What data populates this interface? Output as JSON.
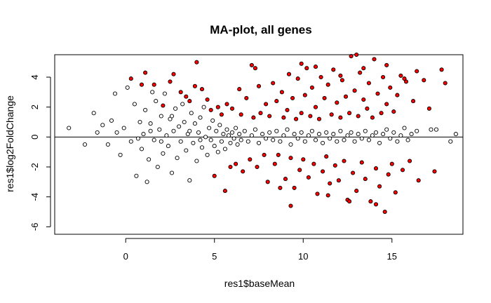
{
  "chart_data": {
    "type": "scatter",
    "title": "MA-plot, all genes",
    "xlabel": "res1$baseMean",
    "ylabel": "res1$log2FoldChange",
    "xlim": [
      -4,
      19
    ],
    "ylim": [
      -6.5,
      5.5
    ],
    "x_ticks": [
      0,
      5,
      10,
      15
    ],
    "y_ticks": [
      -6,
      -4,
      -2,
      0,
      2,
      4
    ],
    "reference_line": {
      "y": 0,
      "color": "#000000"
    },
    "grid": false,
    "legend": "none",
    "point_style": {
      "shape": "open-circle",
      "outline": "#000000"
    },
    "series": [
      {
        "fill": "#ffffff",
        "points": [
          [
            -3.2,
            0.6
          ],
          [
            -2.3,
            -0.5
          ],
          [
            -1.8,
            1.6
          ],
          [
            -1.6,
            0.3
          ],
          [
            -1.3,
            0.8
          ],
          [
            -1.0,
            -0.5
          ],
          [
            -0.8,
            1.1
          ],
          [
            -0.6,
            2.9
          ],
          [
            -0.5,
            0.3
          ],
          [
            -0.3,
            -1.2
          ],
          [
            -0.1,
            0.6
          ],
          [
            0.1,
            3.3
          ],
          [
            0.3,
            -0.3
          ],
          [
            0.5,
            2.2
          ],
          [
            0.6,
            -2.6
          ],
          [
            0.8,
            1.0
          ],
          [
            0.9,
            -0.8
          ],
          [
            1.0,
            0.2
          ],
          [
            1.1,
            1.8
          ],
          [
            1.2,
            -3.0
          ],
          [
            1.3,
            -1.5
          ],
          [
            1.4,
            0.9
          ],
          [
            1.5,
            3.0
          ],
          [
            1.6,
            -0.2
          ],
          [
            1.7,
            2.4
          ],
          [
            1.8,
            -2.0
          ],
          [
            1.9,
            0.5
          ],
          [
            2.0,
            1.4
          ],
          [
            2.1,
            -1.1
          ],
          [
            2.2,
            2.9
          ],
          [
            2.3,
            0.1
          ],
          [
            2.4,
            -0.6
          ],
          [
            2.5,
            1.2
          ],
          [
            2.6,
            -2.4
          ],
          [
            2.7,
            0.4
          ],
          [
            2.8,
            1.9
          ],
          [
            2.9,
            -1.4
          ],
          [
            3.0,
            0.7
          ],
          [
            3.1,
            -0.3
          ],
          [
            3.2,
            2.2
          ],
          [
            3.3,
            1.0
          ],
          [
            3.4,
            -0.9
          ],
          [
            3.5,
            0.2
          ],
          [
            3.6,
            -2.9
          ],
          [
            3.7,
            1.6
          ],
          [
            3.8,
            -0.4
          ],
          [
            3.9,
            0.9
          ],
          [
            4.0,
            -1.6
          ],
          [
            4.1,
            0.3
          ],
          [
            4.2,
            1.3
          ],
          [
            4.3,
            -0.7
          ],
          [
            4.4,
            2.0
          ],
          [
            4.5,
            0.0
          ],
          [
            4.6,
            -1.2
          ],
          [
            4.7,
            0.6
          ],
          [
            4.8,
            -0.2
          ],
          [
            4.9,
            1.1
          ],
          [
            5.0,
            -0.6
          ],
          [
            5.1,
            0.4
          ],
          [
            5.2,
            -1.0
          ],
          [
            5.3,
            0.8
          ],
          [
            5.4,
            -0.3
          ],
          [
            5.5,
            0.2
          ],
          [
            5.6,
            -0.8
          ],
          [
            5.7,
            0.5
          ],
          [
            5.8,
            0.1
          ],
          [
            5.9,
            -0.4
          ],
          [
            6.0,
            0.3
          ],
          [
            6.1,
            -0.1
          ],
          [
            6.2,
            0.6
          ],
          [
            6.3,
            -0.5
          ],
          [
            6.4,
            0.2
          ],
          [
            6.5,
            -0.2
          ],
          [
            6.7,
            0.4
          ],
          [
            6.9,
            -0.3
          ],
          [
            7.1,
            0.1
          ],
          [
            7.3,
            0.5
          ],
          [
            7.5,
            -0.4
          ],
          [
            7.7,
            0.2
          ],
          [
            7.9,
            -0.1
          ],
          [
            8.1,
            0.3
          ],
          [
            8.3,
            -0.2
          ],
          [
            8.5,
            0.4
          ],
          [
            8.7,
            -0.3
          ],
          [
            8.9,
            0.1
          ],
          [
            9.1,
            0.5
          ],
          [
            9.3,
            -0.5
          ],
          [
            9.5,
            0.2
          ],
          [
            9.7,
            -0.1
          ],
          [
            9.9,
            0.3
          ],
          [
            10.1,
            -0.3
          ],
          [
            10.3,
            0.1
          ],
          [
            10.5,
            0.4
          ],
          [
            10.7,
            -0.2
          ],
          [
            10.9,
            0.2
          ],
          [
            11.1,
            -0.4
          ],
          [
            11.3,
            0.3
          ],
          [
            11.5,
            -0.1
          ],
          [
            11.7,
            0.2
          ],
          [
            11.9,
            -0.3
          ],
          [
            12.1,
            0.4
          ],
          [
            12.3,
            -0.2
          ],
          [
            12.5,
            0.1
          ],
          [
            12.7,
            0.3
          ],
          [
            12.9,
            -0.3
          ],
          [
            13.1,
            0.2
          ],
          [
            13.3,
            -0.1
          ],
          [
            13.5,
            0.4
          ],
          [
            13.7,
            -0.2
          ],
          [
            13.9,
            0.1
          ],
          [
            14.1,
            0.3
          ],
          [
            14.3,
            -0.4
          ],
          [
            14.5,
            0.2
          ],
          [
            14.7,
            0.5
          ],
          [
            14.9,
            -0.1
          ],
          [
            15.1,
            0.3
          ],
          [
            15.3,
            -0.3
          ],
          [
            15.5,
            0.1
          ],
          [
            15.7,
            0.6
          ],
          [
            15.9,
            -0.2
          ],
          [
            16.1,
            0.2
          ],
          [
            16.4,
            0.4
          ],
          [
            17.2,
            0.5
          ],
          [
            17.5,
            0.5
          ],
          [
            18.3,
            -0.3
          ],
          [
            18.6,
            0.2
          ],
          [
            2.0,
            -0.3
          ],
          [
            2.6,
            1.4
          ],
          [
            3.6,
            0.4
          ],
          [
            4.2,
            -0.2
          ],
          [
            1.4,
            0.4
          ],
          [
            0.7,
            -0.1
          ]
        ]
      },
      {
        "fill": "#ff0000",
        "points": [
          [
            0.3,
            3.9
          ],
          [
            0.9,
            3.5
          ],
          [
            1.1,
            4.3
          ],
          [
            1.6,
            3.5
          ],
          [
            2.1,
            2.1
          ],
          [
            2.5,
            3.7
          ],
          [
            2.7,
            4.2
          ],
          [
            3.1,
            3.0
          ],
          [
            3.4,
            2.7
          ],
          [
            3.6,
            2.4
          ],
          [
            3.9,
            3.4
          ],
          [
            4.0,
            5.0
          ],
          [
            4.3,
            3.2
          ],
          [
            4.6,
            2.5
          ],
          [
            4.8,
            1.8
          ],
          [
            5.0,
            -2.6
          ],
          [
            5.2,
            2.0
          ],
          [
            5.4,
            1.5
          ],
          [
            5.6,
            -3.6
          ],
          [
            5.7,
            2.2
          ],
          [
            5.9,
            -2.0
          ],
          [
            6.0,
            1.9
          ],
          [
            6.2,
            -1.8
          ],
          [
            6.4,
            3.2
          ],
          [
            6.5,
            1.5
          ],
          [
            6.6,
            -2.3
          ],
          [
            6.8,
            2.6
          ],
          [
            7.0,
            -1.5
          ],
          [
            7.1,
            4.8
          ],
          [
            7.2,
            1.3
          ],
          [
            7.4,
            -2.0
          ],
          [
            7.5,
            3.4
          ],
          [
            7.6,
            1.6
          ],
          [
            7.8,
            -1.2
          ],
          [
            7.9,
            2.2
          ],
          [
            8.0,
            -3.0
          ],
          [
            8.1,
            1.4
          ],
          [
            8.3,
            3.6
          ],
          [
            8.4,
            -1.8
          ],
          [
            8.5,
            2.4
          ],
          [
            8.6,
            -1.2
          ],
          [
            8.8,
            3.0
          ],
          [
            8.9,
            1.3
          ],
          [
            9.0,
            -2.8
          ],
          [
            9.1,
            1.8
          ],
          [
            9.2,
            4.2
          ],
          [
            9.3,
            -1.4
          ],
          [
            9.4,
            2.6
          ],
          [
            9.5,
            -3.4
          ],
          [
            9.6,
            1.2
          ],
          [
            9.7,
            3.9
          ],
          [
            9.8,
            -2.2
          ],
          [
            9.9,
            1.6
          ],
          [
            10.0,
            -1.5
          ],
          [
            10.1,
            2.8
          ],
          [
            10.2,
            4.6
          ],
          [
            10.3,
            -2.7
          ],
          [
            10.4,
            1.4
          ],
          [
            10.5,
            3.3
          ],
          [
            10.6,
            -1.8
          ],
          [
            10.7,
            2.0
          ],
          [
            10.8,
            -3.8
          ],
          [
            10.9,
            1.2
          ],
          [
            11.0,
            4.0
          ],
          [
            11.1,
            -2.3
          ],
          [
            11.2,
            2.6
          ],
          [
            11.3,
            -1.3
          ],
          [
            11.4,
            3.5
          ],
          [
            11.5,
            -3.1
          ],
          [
            11.6,
            1.5
          ],
          [
            11.7,
            4.5
          ],
          [
            11.8,
            -1.9
          ],
          [
            11.9,
            2.3
          ],
          [
            12.0,
            -2.9
          ],
          [
            12.1,
            1.3
          ],
          [
            12.2,
            3.8
          ],
          [
            12.3,
            -1.6
          ],
          [
            12.4,
            2.7
          ],
          [
            12.5,
            -4.2
          ],
          [
            12.6,
            1.6
          ],
          [
            12.7,
            5.4
          ],
          [
            12.8,
            -2.4
          ],
          [
            12.9,
            3.1
          ],
          [
            13.0,
            -3.6
          ],
          [
            13.1,
            1.4
          ],
          [
            13.2,
            4.3
          ],
          [
            13.3,
            -1.7
          ],
          [
            13.4,
            2.5
          ],
          [
            13.5,
            -2.8
          ],
          [
            13.6,
            1.9
          ],
          [
            13.7,
            3.6
          ],
          [
            13.8,
            -4.3
          ],
          [
            13.9,
            1.3
          ],
          [
            14.0,
            5.2
          ],
          [
            14.1,
            -2.1
          ],
          [
            14.2,
            2.9
          ],
          [
            14.3,
            -3.3
          ],
          [
            14.4,
            1.6
          ],
          [
            14.5,
            4.0
          ],
          [
            14.6,
            -5.0
          ],
          [
            14.7,
            2.2
          ],
          [
            14.8,
            -2.5
          ],
          [
            14.9,
            3.3
          ],
          [
            15.0,
            -1.8
          ],
          [
            15.1,
            1.7
          ],
          [
            15.2,
            -3.7
          ],
          [
            15.3,
            2.8
          ],
          [
            15.5,
            4.1
          ],
          [
            15.6,
            -2.2
          ],
          [
            15.8,
            3.7
          ],
          [
            16.0,
            -1.6
          ],
          [
            16.2,
            2.4
          ],
          [
            16.5,
            -2.9
          ],
          [
            16.8,
            3.8
          ],
          [
            17.1,
            1.9
          ],
          [
            17.4,
            -2.3
          ],
          [
            17.8,
            4.5
          ],
          [
            18.0,
            3.6
          ],
          [
            9.3,
            -4.6
          ],
          [
            13.0,
            5.5
          ],
          [
            12.6,
            -4.3
          ],
          [
            11.4,
            -3.9
          ],
          [
            8.7,
            -3.4
          ],
          [
            14.7,
            4.8
          ],
          [
            10.7,
            4.7
          ],
          [
            13.4,
            4.6
          ],
          [
            7.3,
            4.6
          ],
          [
            9.9,
            4.9
          ],
          [
            12.1,
            4.1
          ],
          [
            16.4,
            4.4
          ],
          [
            15.7,
            3.9
          ],
          [
            14.1,
            -4.5
          ]
        ]
      }
    ]
  }
}
